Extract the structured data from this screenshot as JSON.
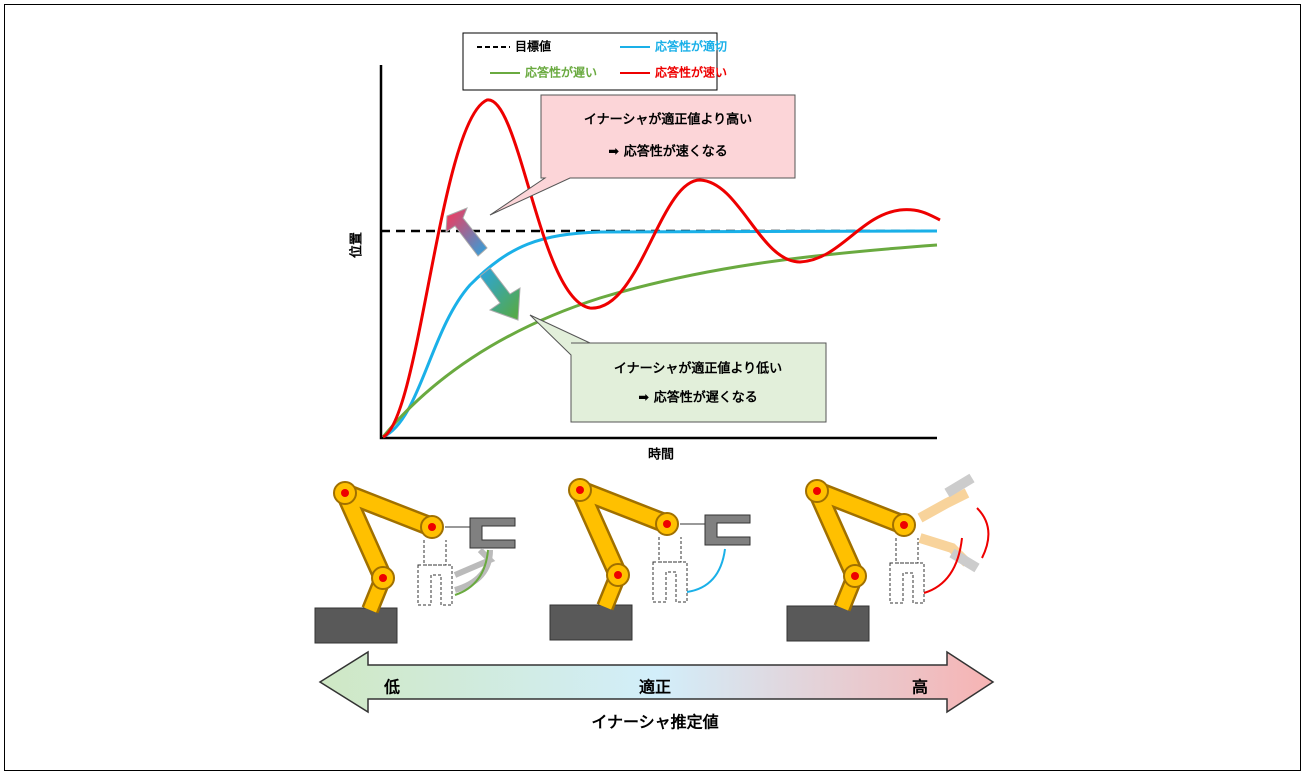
{
  "legend": {
    "items": [
      {
        "label": "目標値"
      },
      {
        "label": "応答性が適切"
      },
      {
        "label": "応答性が遅い"
      },
      {
        "label": "応答性が速い"
      }
    ]
  },
  "callouts": [
    {
      "lines": [
        "イナーシャが適正値より高い",
        "➡ 応答性が速くなる"
      ]
    },
    {
      "lines": [
        "イナーシャが適正値より低い",
        "➡ 応答性が遅くなる"
      ]
    }
  ],
  "axes": {
    "y_label": "位置",
    "x_label": "時間"
  },
  "scale": {
    "low": "低",
    "mid": "適正",
    "high": "高",
    "title": "イナーシャ推定値"
  }
}
